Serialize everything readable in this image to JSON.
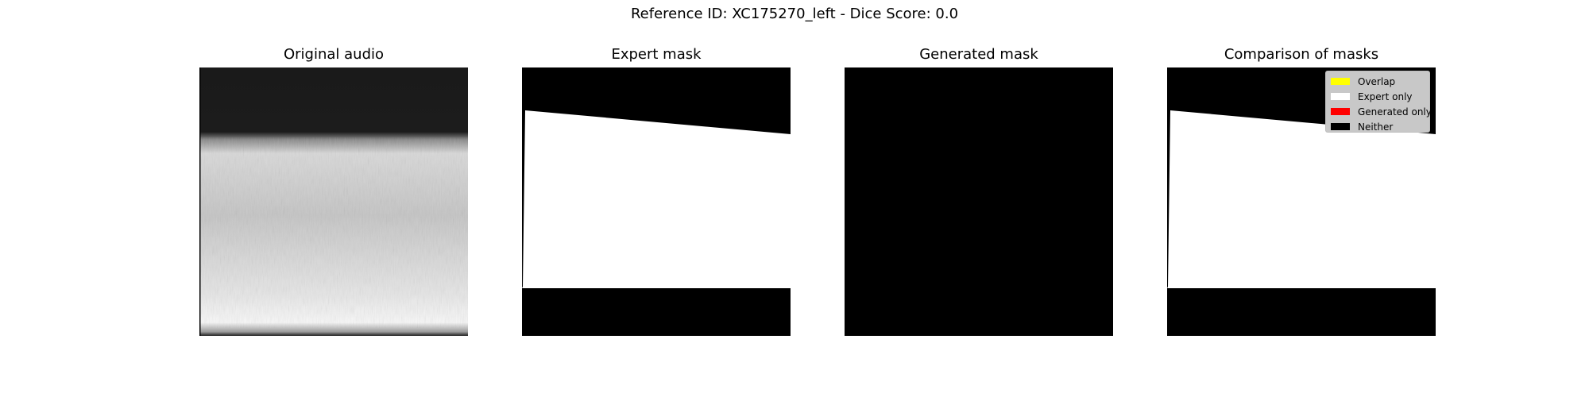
{
  "figure": {
    "suptitle": "Reference ID: XC175270_left - Dice Score: 0.0"
  },
  "panels": [
    {
      "title": "Original audio"
    },
    {
      "title": "Expert mask"
    },
    {
      "title": "Generated mask"
    },
    {
      "title": "Comparison of masks"
    }
  ],
  "legend": {
    "items": [
      {
        "label": "Overlap",
        "color": "#ffff00"
      },
      {
        "label": "Expert only",
        "color": "#ffffff"
      },
      {
        "label": "Generated only",
        "color": "#ff0000"
      },
      {
        "label": "Neither",
        "color": "#000000"
      }
    ]
  },
  "colors": {
    "mask_on": "#ffffff",
    "mask_off": "#000000"
  }
}
